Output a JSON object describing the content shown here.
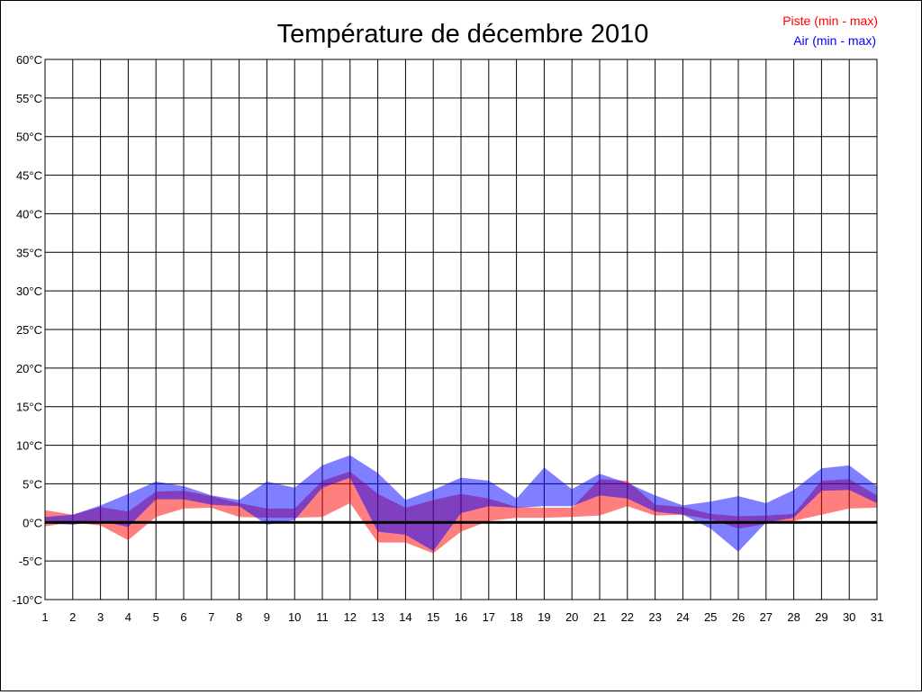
{
  "chart_data": {
    "type": "area",
    "title": "Température de décembre 2010",
    "xlabel": "",
    "ylabel": "",
    "unit": "°C",
    "ylim": [
      -10,
      60
    ],
    "yticks": [
      -10,
      -5,
      0,
      5,
      10,
      15,
      20,
      25,
      30,
      35,
      40,
      45,
      50,
      55,
      60
    ],
    "x": [
      1,
      2,
      3,
      4,
      5,
      6,
      7,
      8,
      9,
      10,
      11,
      12,
      13,
      14,
      15,
      16,
      17,
      18,
      19,
      20,
      21,
      22,
      23,
      24,
      25,
      26,
      27,
      28,
      29,
      30,
      31
    ],
    "grid": true,
    "legend_position": "top-right",
    "series": [
      {
        "name": "Piste (min - max)",
        "color": "#ff0000",
        "min": [
          -0.5,
          0.0,
          -0.4,
          -2.3,
          0.7,
          1.8,
          1.9,
          0.7,
          0.6,
          0.6,
          0.7,
          2.5,
          -2.6,
          -2.6,
          -4.0,
          -1.2,
          0.2,
          0.6,
          0.6,
          0.7,
          0.9,
          2.1,
          0.9,
          1.0,
          0.4,
          -0.8,
          -0.2,
          0.2,
          1.0,
          1.8,
          1.9
        ],
        "max": [
          1.6,
          1.0,
          2.0,
          1.4,
          4.0,
          4.1,
          3.4,
          2.5,
          1.8,
          1.8,
          5.4,
          6.6,
          3.7,
          1.9,
          2.9,
          3.7,
          3.1,
          2.0,
          1.9,
          1.9,
          5.6,
          5.4,
          2.3,
          2.0,
          1.1,
          0.8,
          0.9,
          1.1,
          5.4,
          5.6,
          3.5
        ]
      },
      {
        "name": "Air (min - max)",
        "color": "#0000ff",
        "min": [
          -0.1,
          -0.3,
          0.2,
          -0.6,
          3.0,
          3.0,
          2.3,
          2.1,
          -0.3,
          0.3,
          4.5,
          5.8,
          -1.2,
          -1.6,
          -3.7,
          1.2,
          2.1,
          1.9,
          2.1,
          2.1,
          3.5,
          3.1,
          1.4,
          1.0,
          -0.8,
          -3.8,
          0.0,
          0.6,
          4.1,
          4.2,
          2.5
        ],
        "max": [
          0.7,
          1.0,
          2.2,
          3.7,
          5.3,
          4.7,
          3.5,
          2.9,
          5.3,
          4.5,
          7.4,
          8.7,
          6.4,
          2.9,
          4.2,
          5.8,
          5.4,
          3.1,
          7.1,
          4.3,
          6.3,
          5.1,
          3.5,
          2.2,
          2.7,
          3.4,
          2.5,
          4.2,
          7.0,
          7.4,
          4.7
        ]
      }
    ]
  }
}
